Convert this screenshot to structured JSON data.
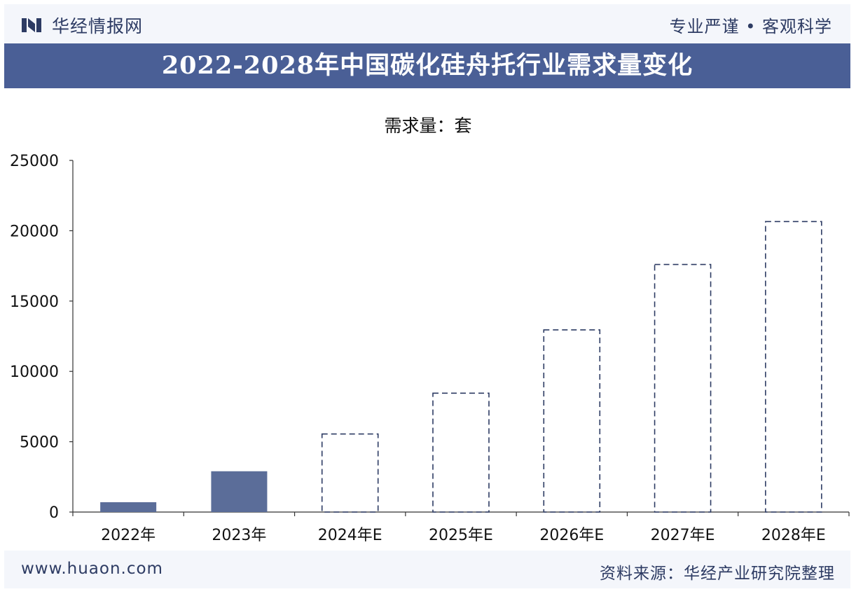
{
  "header": {
    "brand": "华经情报网",
    "slogan": "专业严谨 • 客观科学",
    "title": "2022-2028年中国碳化硅舟托行业需求量变化"
  },
  "footer": {
    "site": "www.huaon.com",
    "source": "资料来源：华经产业研究院整理"
  },
  "colors": {
    "title_bg": "#4a5f96",
    "bar_fill": "#5b6d99",
    "dashed_outline": "#2d3b63",
    "text_dark": "#2d3b63"
  },
  "chart_data": {
    "type": "bar",
    "title": "2022-2028年中国碳化硅舟托行业需求量变化",
    "unit_label": "需求量：套",
    "categories": [
      "2022年",
      "2023年",
      "2024年E",
      "2025年E",
      "2026年E",
      "2027年E",
      "2028年E"
    ],
    "values": [
      700,
      2900,
      5550,
      8450,
      12950,
      17600,
      20650
    ],
    "estimated": [
      false,
      false,
      true,
      true,
      true,
      true,
      true
    ],
    "ylim": [
      0,
      25000
    ],
    "yticks": [
      0,
      5000,
      10000,
      15000,
      20000,
      25000
    ],
    "grid": false,
    "legend": "none"
  }
}
